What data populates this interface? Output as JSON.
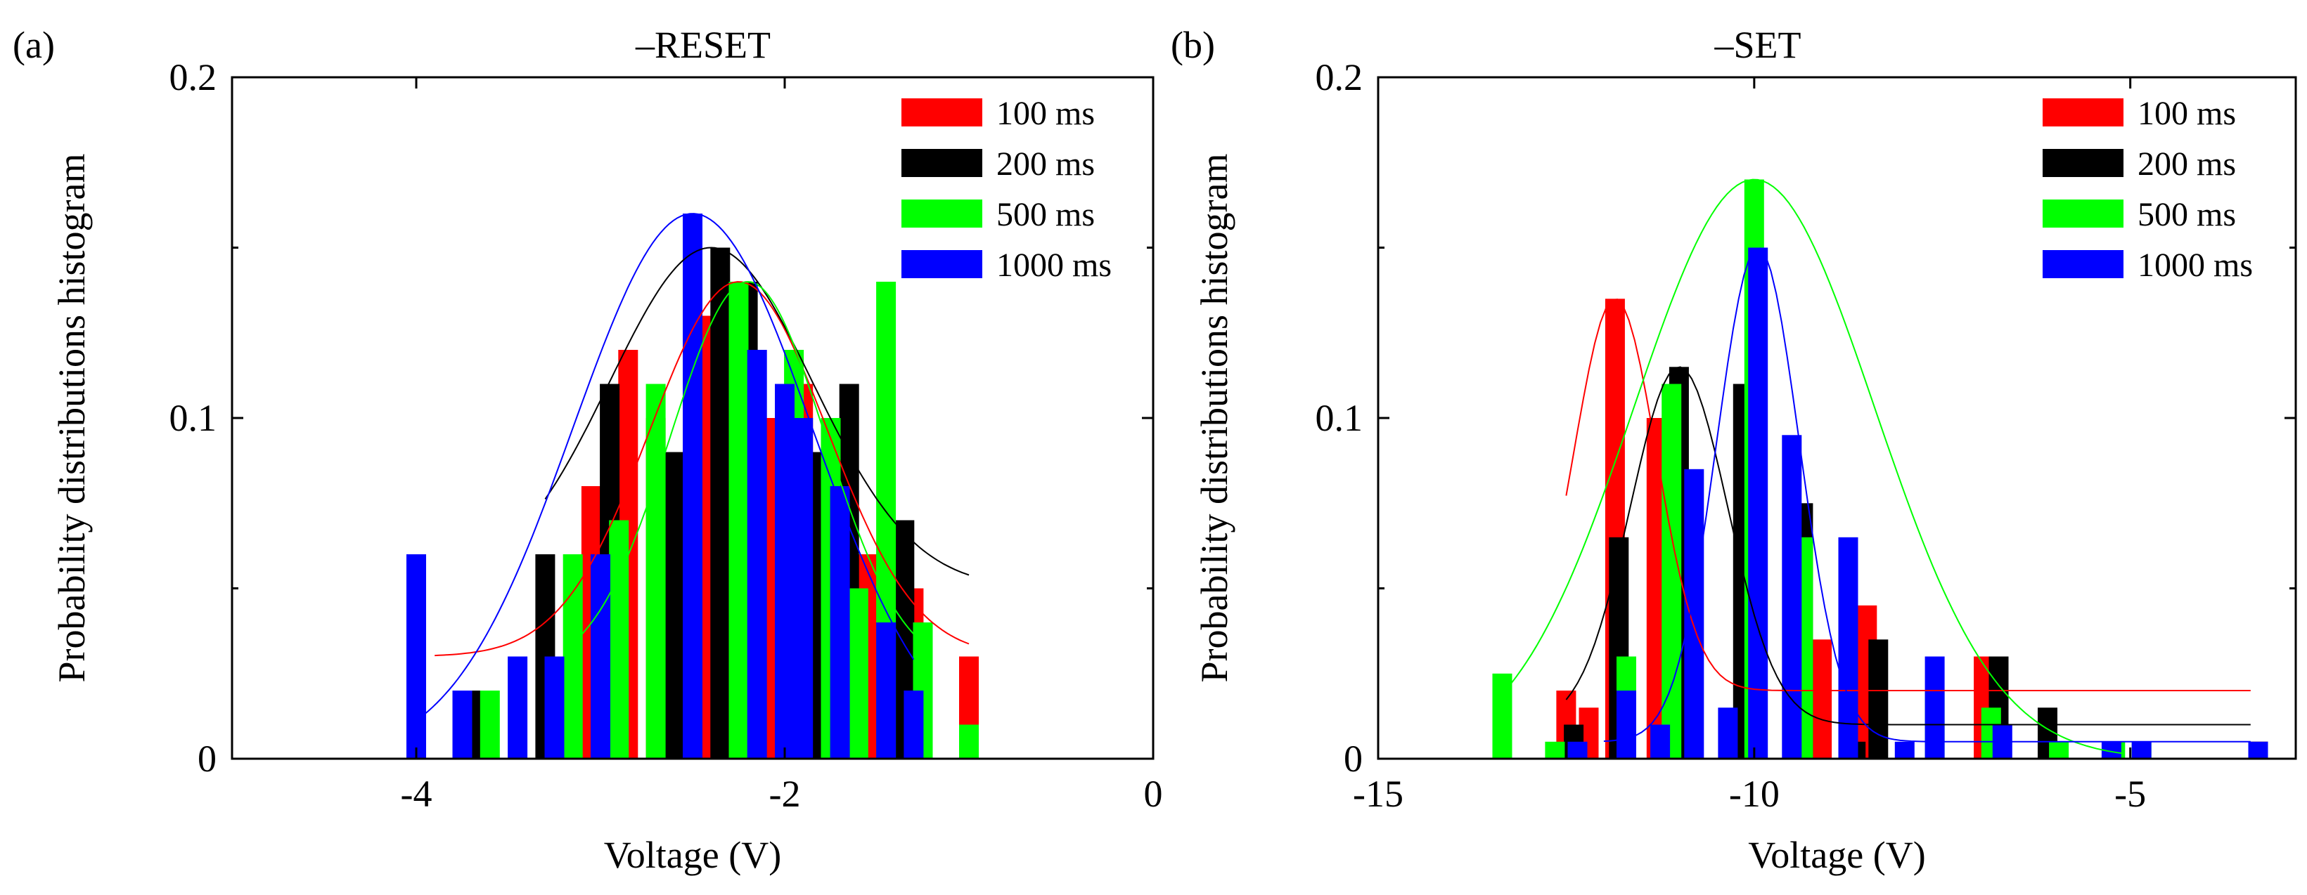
{
  "figure": {
    "panels": [
      {
        "tag": "(a)",
        "title": "–RESET"
      },
      {
        "tag": "(b)",
        "title": "–SET"
      }
    ]
  },
  "chart_data": [
    {
      "type": "bar",
      "panel_tag": "(a)",
      "title": "–RESET",
      "xlabel": "Voltage (V)",
      "ylabel": "Probability distributions histogram",
      "xlim": [
        -5,
        0
      ],
      "ylim": [
        0,
        0.2
      ],
      "xticks": [
        -4,
        -2,
        0
      ],
      "xtick_labels": [
        "-4",
        "-2",
        "0"
      ],
      "yticks": [
        0,
        0.1,
        0.2
      ],
      "ytick_labels": [
        "0",
        "0.1",
        "0.2"
      ],
      "grid": false,
      "legend_position": "top-right",
      "series": [
        {
          "name": "100 ms",
          "color": "#ff0000",
          "x": [
            -3.65,
            -3.05,
            -2.85,
            -2.7,
            -2.45,
            -2.25,
            -2.05,
            -1.9,
            -1.55,
            -1.3,
            -1.0
          ],
          "values": [
            0.01,
            0.08,
            0.12,
            0.1,
            0.13,
            0.14,
            0.1,
            0.11,
            0.06,
            0.05,
            0.03
          ],
          "fit": {
            "mu": -2.25,
            "sigma": 0.48,
            "amp": 0.11,
            "base": 0.03,
            "x_range": [
              -3.9,
              -1.0
            ]
          }
        },
        {
          "name": "200 ms",
          "color": "#000000",
          "x": [
            -3.7,
            -3.3,
            -2.95,
            -2.6,
            -2.35,
            -2.2,
            -1.85,
            -1.65,
            -1.35
          ],
          "values": [
            0.02,
            0.06,
            0.11,
            0.09,
            0.15,
            0.14,
            0.09,
            0.11,
            0.07
          ],
          "fit": {
            "mu": -2.4,
            "sigma": 0.55,
            "amp": 0.1,
            "base": 0.05,
            "x_range": [
              -3.3,
              -1.0
            ]
          }
        },
        {
          "name": "500 ms",
          "color": "#00ff00",
          "x": [
            -3.6,
            -3.15,
            -2.9,
            -2.7,
            -2.25,
            -1.95,
            -1.75,
            -1.6,
            -1.45,
            -1.25,
            -1.0
          ],
          "values": [
            0.02,
            0.06,
            0.07,
            0.11,
            0.14,
            0.12,
            0.1,
            0.05,
            0.14,
            0.04,
            0.01
          ],
          "fit": {
            "mu": -2.2,
            "sigma": 0.42,
            "amp": 0.115,
            "base": 0.025,
            "x_range": [
              -3.1,
              -1.2
            ]
          }
        },
        {
          "name": "1000 ms",
          "color": "#0000ff",
          "x": [
            -4.0,
            -3.75,
            -3.45,
            -3.25,
            -3.0,
            -2.5,
            -2.15,
            -2.0,
            -1.9,
            -1.7,
            -1.45,
            -1.3
          ],
          "values": [
            0.06,
            0.02,
            0.03,
            0.03,
            0.06,
            0.16,
            0.12,
            0.11,
            0.1,
            0.08,
            0.04,
            0.02
          ],
          "fit": {
            "mu": -2.5,
            "sigma": 0.65,
            "amp": 0.16,
            "base": 0.0,
            "x_range": [
              -4.0,
              -1.3
            ]
          }
        }
      ]
    },
    {
      "type": "bar",
      "panel_tag": "(b)",
      "title": "–SET",
      "xlabel": "Voltage (V)",
      "ylabel": "Probability distributions histogram",
      "xlim": [
        -15,
        -2.8
      ],
      "ylim": [
        0,
        0.2
      ],
      "xticks": [
        -15,
        -10,
        -5
      ],
      "xtick_labels": [
        "-15",
        "-10",
        "-5"
      ],
      "yticks": [
        0,
        0.1,
        0.2
      ],
      "ytick_labels": [
        "0",
        "0.1",
        "0.2"
      ],
      "grid": false,
      "legend_position": "top-right",
      "series": [
        {
          "name": "100 ms",
          "color": "#ff0000",
          "x": [
            -12.5,
            -12.2,
            -11.85,
            -11.3,
            -9.1,
            -8.5,
            -6.95,
            -3.3
          ],
          "values": [
            0.02,
            0.015,
            0.135,
            0.1,
            0.035,
            0.045,
            0.03,
            0.005
          ],
          "fit": {
            "mu": -11.85,
            "sigma": 0.55,
            "amp": 0.115,
            "base": 0.02,
            "x_range": [
              -12.5,
              -3.4
            ]
          }
        },
        {
          "name": "200 ms",
          "color": "#000000",
          "x": [
            -12.4,
            -11.8,
            -11.0,
            -10.15,
            -9.35,
            -8.65,
            -8.35,
            -6.75,
            -6.1,
            -3.3
          ],
          "values": [
            0.01,
            0.065,
            0.115,
            0.11,
            0.075,
            0.005,
            0.035,
            0.03,
            0.015,
            0.005
          ],
          "fit": {
            "mu": -11.0,
            "sigma": 0.65,
            "amp": 0.105,
            "base": 0.01,
            "x_range": [
              -12.5,
              -3.4
            ]
          }
        },
        {
          "name": "500 ms",
          "color": "#00ff00",
          "x": [
            -13.35,
            -12.65,
            -11.7,
            -11.1,
            -10.0,
            -9.35,
            -7.6,
            -6.85,
            -5.95,
            -5.2,
            -4.85
          ],
          "values": [
            0.025,
            0.005,
            0.03,
            0.11,
            0.17,
            0.065,
            0.02,
            0.015,
            0.005,
            0.005,
            0.005
          ],
          "fit": {
            "mu": -10.0,
            "sigma": 1.6,
            "amp": 0.17,
            "base": 0.0,
            "x_range": [
              -13.3,
              -5.1
            ]
          }
        },
        {
          "name": "1000 ms",
          "color": "#0000ff",
          "x": [
            -12.35,
            -11.7,
            -11.25,
            -10.8,
            -10.35,
            -9.95,
            -9.5,
            -8.75,
            -8.0,
            -7.6,
            -6.7,
            -5.25,
            -4.85,
            -3.3
          ],
          "values": [
            0.005,
            0.02,
            0.01,
            0.085,
            0.015,
            0.15,
            0.095,
            0.065,
            0.005,
            0.03,
            0.01,
            0.005,
            0.005,
            0.005
          ],
          "fit": {
            "mu": -9.95,
            "sigma": 0.55,
            "amp": 0.145,
            "base": 0.005,
            "x_range": [
              -12.0,
              -3.4
            ]
          }
        }
      ]
    }
  ]
}
